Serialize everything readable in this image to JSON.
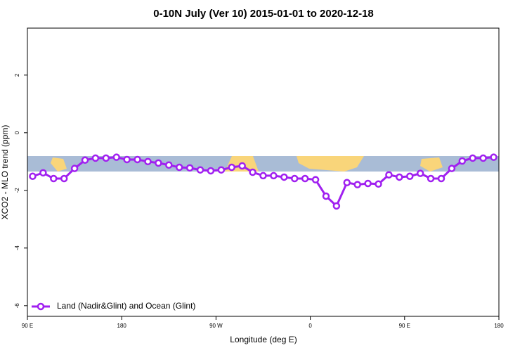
{
  "chart_data": {
    "type": "line",
    "title": "0-10N July (Ver 10)   2015-01-01 to 2020-12-18",
    "x_label": "Longitude (deg E)",
    "y_label": "XCO2 - MLO trend (ppm)",
    "x": [
      95,
      105,
      115,
      125,
      135,
      145,
      155,
      165,
      175,
      185,
      195,
      205,
      215,
      225,
      235,
      245,
      255,
      265,
      275,
      285,
      295,
      305,
      315,
      325,
      335,
      345,
      355,
      365,
      375,
      385,
      395,
      405,
      415,
      425,
      435,
      445,
      455,
      465,
      475,
      485,
      495,
      505,
      515,
      525,
      535
    ],
    "series": [
      {
        "name": "Land (Nadir&Glint) and Ocean (Glint)",
        "color": "#a020f0",
        "values": [
          -1.51,
          -1.39,
          -1.59,
          -1.59,
          -1.24,
          -0.95,
          -0.88,
          -0.88,
          -0.85,
          -0.93,
          -0.93,
          -1.0,
          -1.05,
          -1.12,
          -1.2,
          -1.22,
          -1.29,
          -1.32,
          -1.29,
          -1.2,
          -1.15,
          -1.37,
          -1.49,
          -1.49,
          -1.54,
          -1.59,
          -1.59,
          -1.63,
          -2.2,
          -2.54,
          -1.73,
          -1.8,
          -1.76,
          -1.78,
          -1.46,
          -1.54,
          -1.51,
          -1.41,
          -1.59,
          -1.59,
          -1.24,
          -0.98,
          -0.88,
          -0.88,
          -0.85
        ]
      }
    ],
    "xlim": [
      90,
      540
    ],
    "xticks": [
      {
        "value": 90,
        "label": "90 E"
      },
      180,
      {
        "value": 270,
        "label": "90 W"
      },
      {
        "value": 360,
        "label": "0"
      },
      {
        "value": 450,
        "label": "90 E"
      },
      {
        "value": 540,
        "label": "180"
      }
    ],
    "ylim": [
      -6.37,
      3.63
    ],
    "yticks": [
      -6,
      -4,
      -2,
      0,
      2
    ],
    "legend": "bottom-left"
  }
}
